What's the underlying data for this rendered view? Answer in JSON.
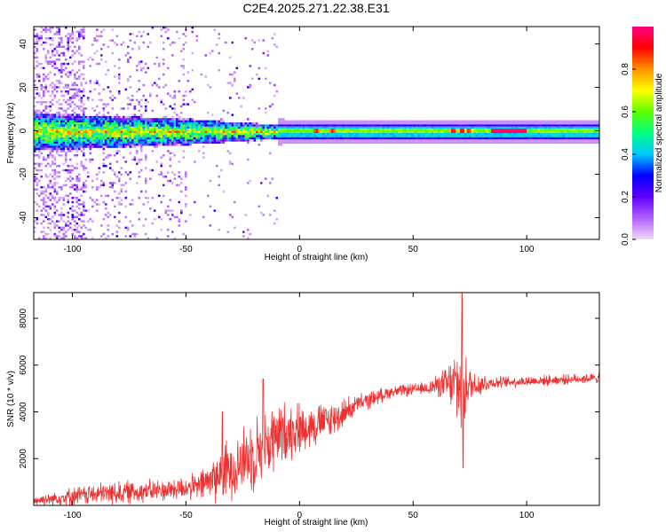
{
  "title": "C2E4.2025.271.22.38.E31",
  "chart_data": [
    {
      "type": "heatmap",
      "xlabel": "Height of straight line (km)",
      "ylabel": "Frequency (Hz)",
      "xlim": [
        -117,
        132
      ],
      "ylim": [
        -50,
        48
      ],
      "x_ticks": [
        -100,
        -50,
        0,
        50,
        100
      ],
      "y_ticks": [
        -40,
        -20,
        0,
        20,
        40
      ],
      "colorbar": {
        "label": "Normalized spectral amplitude",
        "range": [
          0,
          1
        ],
        "ticks": [
          0.0,
          0.2,
          0.4,
          0.6,
          0.8
        ],
        "colors": [
          "#f0d8f8",
          "#b060ff",
          "#6000ff",
          "#0000ff",
          "#00c8ff",
          "#00ff80",
          "#60ff00",
          "#ffff00",
          "#ff9000",
          "#ff0000",
          "#ff0080"
        ]
      },
      "band": {
        "center_hz": 0,
        "points": [
          {
            "x": -117,
            "half_width_hz": 9
          },
          {
            "x": -100,
            "half_width_hz": 8
          },
          {
            "x": -50,
            "half_width_hz": 6
          },
          {
            "x": -20,
            "half_width_hz": 4
          },
          {
            "x": 0,
            "half_width_hz": 3
          },
          {
            "x": 50,
            "half_width_hz": 3
          },
          {
            "x": 100,
            "half_width_hz": 3
          },
          {
            "x": 132,
            "half_width_hz": 3
          }
        ],
        "hot_spots": [
          {
            "x": 7,
            "amp": 1.0
          },
          {
            "x": 14,
            "amp": 1.0
          },
          {
            "x": 67,
            "amp": 1.0
          },
          {
            "x": 71,
            "amp": 1.0
          },
          {
            "x": 74,
            "amp": 0.95
          },
          {
            "x": 92,
            "amp": 1.0
          }
        ]
      }
    },
    {
      "type": "line",
      "xlabel": "Height of straight line (km)",
      "ylabel": "SNR (10 * v/v)",
      "xlim": [
        -117,
        132
      ],
      "ylim": [
        0,
        9100
      ],
      "x_ticks": [
        -100,
        -50,
        0,
        50,
        100
      ],
      "y_ticks": [
        2000,
        4000,
        6000,
        8000
      ],
      "color": "#ee3030",
      "envelope": [
        {
          "x": -117,
          "mean": 200,
          "spread": 250
        },
        {
          "x": -100,
          "mean": 400,
          "spread": 450
        },
        {
          "x": -80,
          "mean": 550,
          "spread": 600
        },
        {
          "x": -60,
          "mean": 650,
          "spread": 550
        },
        {
          "x": -45,
          "mean": 800,
          "spread": 650
        },
        {
          "x": -35,
          "mean": 1300,
          "spread": 1400
        },
        {
          "x": -25,
          "mean": 1900,
          "spread": 1700
        },
        {
          "x": -15,
          "mean": 2600,
          "spread": 2000
        },
        {
          "x": -5,
          "mean": 3200,
          "spread": 1500
        },
        {
          "x": 5,
          "mean": 3400,
          "spread": 1100
        },
        {
          "x": 15,
          "mean": 3700,
          "spread": 900
        },
        {
          "x": 25,
          "mean": 4300,
          "spread": 500
        },
        {
          "x": 40,
          "mean": 4850,
          "spread": 300
        },
        {
          "x": 55,
          "mean": 5000,
          "spread": 300
        },
        {
          "x": 62,
          "mean": 5150,
          "spread": 600
        },
        {
          "x": 68,
          "mean": 5150,
          "spread": 1500
        },
        {
          "x": 71,
          "mean": 5200,
          "spread": 3000
        },
        {
          "x": 75,
          "mean": 5150,
          "spread": 900
        },
        {
          "x": 85,
          "mean": 5250,
          "spread": 300
        },
        {
          "x": 110,
          "mean": 5350,
          "spread": 250
        },
        {
          "x": 132,
          "mean": 5450,
          "spread": 250
        }
      ],
      "peaks": [
        {
          "x": 71.5,
          "y": 9100
        },
        {
          "x": 72,
          "y": 1600
        },
        {
          "x": -16,
          "y": 5400
        },
        {
          "x": -34,
          "y": 4000
        }
      ]
    }
  ]
}
